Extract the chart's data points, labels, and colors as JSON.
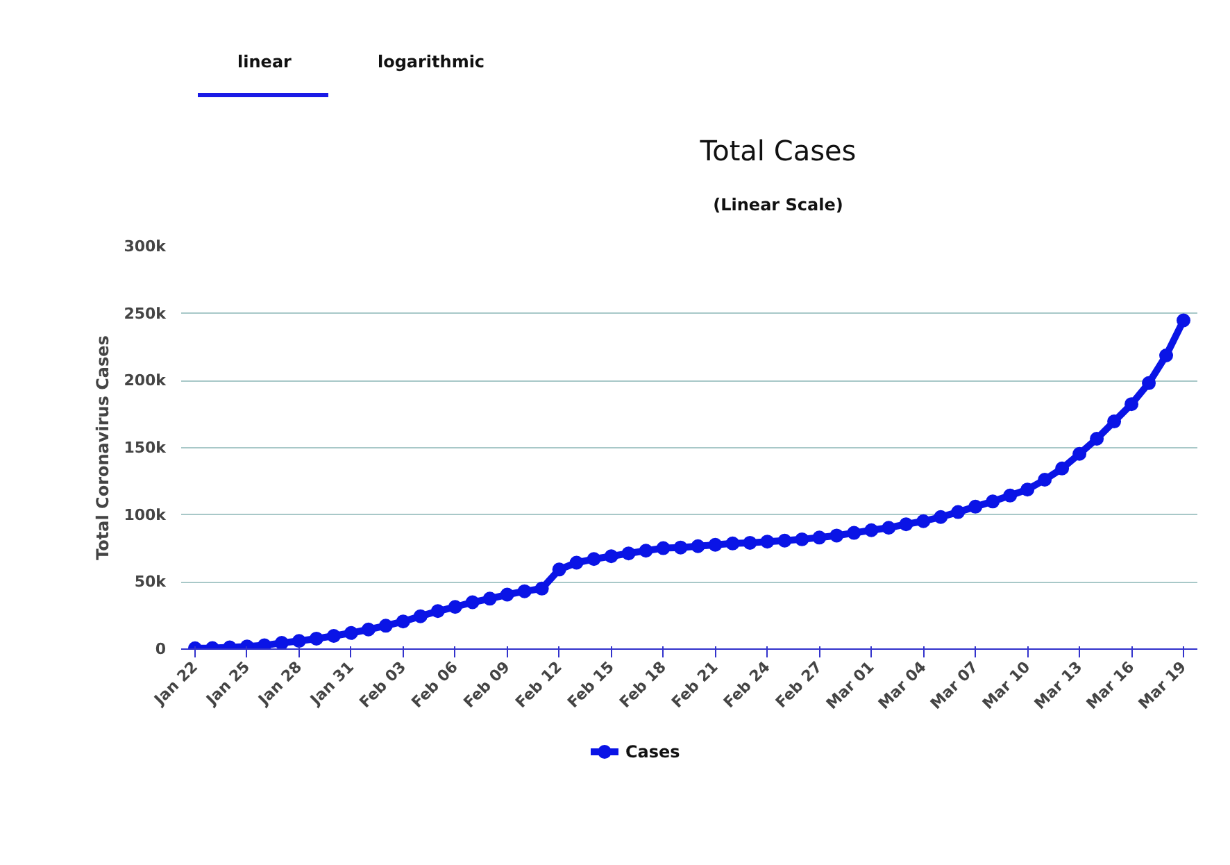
{
  "chart_data": {
    "type": "line",
    "title": "Total Cases",
    "subtitle": "(Linear Scale)",
    "ylabel": "Total Coronavirus Cases",
    "annotations": [
      "linear",
      "logarithmic"
    ],
    "categories": [
      "Jan 22",
      null,
      null,
      "Jan 25",
      null,
      null,
      "Jan 28",
      null,
      null,
      "Jan 31",
      null,
      null,
      "Feb 03",
      null,
      null,
      "Feb 06",
      null,
      null,
      "Feb 09",
      null,
      null,
      "Feb 12",
      null,
      null,
      "Feb 15",
      null,
      null,
      "Feb 18",
      null,
      null,
      "Feb 21",
      null,
      null,
      "Feb 24",
      null,
      null,
      "Feb 27",
      null,
      null,
      "Mar 01",
      null,
      null,
      "Mar 04",
      null,
      null,
      "Mar 07",
      null,
      null,
      "Mar 10",
      null,
      null,
      "Mar 13",
      null,
      null,
      "Mar 16",
      null,
      null,
      "Mar 19"
    ],
    "series": [
      {
        "name": "Cases",
        "color": "#0a14e6",
        "values": [
          600,
          800,
          1300,
          2000,
          2800,
          4600,
          6100,
          7800,
          9800,
          12000,
          14600,
          17400,
          20600,
          24500,
          28300,
          31400,
          34900,
          37600,
          40600,
          43100,
          45100,
          59300,
          64400,
          67100,
          69200,
          71300,
          73300,
          75200,
          75700,
          76700,
          77700,
          78700,
          79200,
          80100,
          80800,
          81800,
          83100,
          84600,
          86600,
          88600,
          90400,
          93000,
          95300,
          98400,
          102100,
          106100,
          110000,
          114400,
          118900,
          126200,
          134600,
          145500,
          156700,
          169600,
          182500,
          198200,
          218800,
          244900
        ]
      }
    ],
    "ylim": [
      0,
      300000
    ],
    "yticks": [
      0,
      {
        "value": 50000,
        "label": "50k"
      },
      {
        "value": 100000,
        "label": "100k"
      },
      {
        "value": 150000,
        "label": "150k"
      },
      {
        "value": 200000,
        "label": "200k"
      },
      {
        "value": 250000,
        "label": "250k"
      },
      {
        "value": 300000,
        "label": "300k"
      }
    ],
    "grid": "y",
    "legend": "bottom",
    "marker": "circle",
    "line_style": "solid"
  }
}
